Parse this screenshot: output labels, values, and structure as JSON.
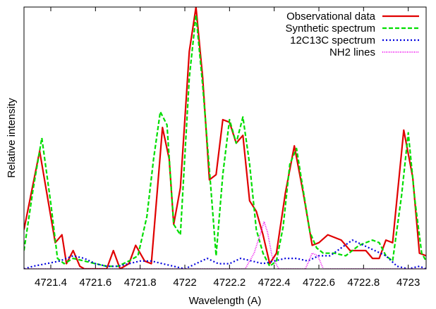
{
  "chart_data": {
    "type": "line",
    "title": "",
    "xlabel": "Wavelength (A)",
    "ylabel": "Relative intensity",
    "xlim": [
      4721.28,
      4723.08
    ],
    "ylim": [
      0,
      1
    ],
    "grid": false,
    "legend_position": "top-right",
    "x_ticks": [
      {
        "value": 4721.4,
        "label": "4721.4"
      },
      {
        "value": 4721.6,
        "label": "4721.6"
      },
      {
        "value": 4721.8,
        "label": "4721.8"
      },
      {
        "value": 4722.0,
        "label": "4722"
      },
      {
        "value": 4722.2,
        "label": "4722.2"
      },
      {
        "value": 4722.4,
        "label": "4722.4"
      },
      {
        "value": 4722.6,
        "label": "4722.6"
      },
      {
        "value": 4722.8,
        "label": "4722.8"
      },
      {
        "value": 4723.0,
        "label": "4723"
      }
    ],
    "series": [
      {
        "name": "Observational data",
        "color": "#e00000",
        "dash": "solid",
        "points": [
          [
            4721.28,
            0.15
          ],
          [
            4721.35,
            0.45
          ],
          [
            4721.42,
            0.1
          ],
          [
            4721.45,
            0.13
          ],
          [
            4721.47,
            0.02
          ],
          [
            4721.5,
            0.07
          ],
          [
            4721.53,
            0.01
          ],
          [
            4721.55,
            0.0
          ],
          [
            4721.6,
            0.0
          ],
          [
            4721.65,
            0.0
          ],
          [
            4721.68,
            0.07
          ],
          [
            4721.71,
            0.0
          ],
          [
            4721.75,
            0.02
          ],
          [
            4721.78,
            0.09
          ],
          [
            4721.82,
            0.03
          ],
          [
            4721.85,
            0.02
          ],
          [
            4721.9,
            0.54
          ],
          [
            4721.93,
            0.42
          ],
          [
            4721.95,
            0.17
          ],
          [
            4721.98,
            0.31
          ],
          [
            4722.02,
            0.83
          ],
          [
            4722.05,
            1.0
          ],
          [
            4722.08,
            0.73
          ],
          [
            4722.11,
            0.34
          ],
          [
            4722.14,
            0.36
          ],
          [
            4722.17,
            0.57
          ],
          [
            4722.2,
            0.56
          ],
          [
            4722.23,
            0.48
          ],
          [
            4722.26,
            0.51
          ],
          [
            4722.29,
            0.26
          ],
          [
            4722.32,
            0.22
          ],
          [
            4722.35,
            0.13
          ],
          [
            4722.38,
            0.02
          ],
          [
            4722.41,
            0.06
          ],
          [
            4722.45,
            0.29
          ],
          [
            4722.49,
            0.47
          ],
          [
            4722.53,
            0.29
          ],
          [
            4722.57,
            0.09
          ],
          [
            4722.6,
            0.1
          ],
          [
            4722.64,
            0.13
          ],
          [
            4722.67,
            0.12
          ],
          [
            4722.7,
            0.11
          ],
          [
            4722.74,
            0.07
          ],
          [
            4722.77,
            0.07
          ],
          [
            4722.81,
            0.07
          ],
          [
            4722.84,
            0.04
          ],
          [
            4722.87,
            0.04
          ],
          [
            4722.9,
            0.11
          ],
          [
            4722.93,
            0.1
          ],
          [
            4722.98,
            0.53
          ],
          [
            4723.02,
            0.35
          ],
          [
            4723.05,
            0.06
          ],
          [
            4723.08,
            0.05
          ]
        ]
      },
      {
        "name": "Synthetic spectrum",
        "color": "#00dd00",
        "dash": "dashed",
        "points": [
          [
            4721.28,
            0.07
          ],
          [
            4721.32,
            0.3
          ],
          [
            4721.36,
            0.5
          ],
          [
            4721.4,
            0.25
          ],
          [
            4721.43,
            0.04
          ],
          [
            4721.46,
            0.02
          ],
          [
            4721.5,
            0.04
          ],
          [
            4721.55,
            0.03
          ],
          [
            4721.6,
            0.02
          ],
          [
            4721.65,
            0.01
          ],
          [
            4721.7,
            0.01
          ],
          [
            4721.75,
            0.03
          ],
          [
            4721.79,
            0.05
          ],
          [
            4721.83,
            0.2
          ],
          [
            4721.86,
            0.42
          ],
          [
            4721.89,
            0.6
          ],
          [
            4721.92,
            0.55
          ],
          [
            4721.95,
            0.17
          ],
          [
            4721.98,
            0.13
          ],
          [
            4722.02,
            0.73
          ],
          [
            4722.05,
            0.97
          ],
          [
            4722.08,
            0.7
          ],
          [
            4722.11,
            0.38
          ],
          [
            4722.14,
            0.05
          ],
          [
            4722.17,
            0.36
          ],
          [
            4722.2,
            0.57
          ],
          [
            4722.23,
            0.48
          ],
          [
            4722.26,
            0.58
          ],
          [
            4722.29,
            0.4
          ],
          [
            4722.32,
            0.15
          ],
          [
            4722.35,
            0.06
          ],
          [
            4722.38,
            0.01
          ],
          [
            4722.41,
            0.03
          ],
          [
            4722.44,
            0.16
          ],
          [
            4722.47,
            0.4
          ],
          [
            4722.5,
            0.46
          ],
          [
            4722.53,
            0.3
          ],
          [
            4722.56,
            0.14
          ],
          [
            4722.59,
            0.08
          ],
          [
            4722.62,
            0.06
          ],
          [
            4722.67,
            0.06
          ],
          [
            4722.72,
            0.05
          ],
          [
            4722.78,
            0.09
          ],
          [
            4722.84,
            0.11
          ],
          [
            4722.87,
            0.1
          ],
          [
            4722.9,
            0.05
          ],
          [
            4722.93,
            0.03
          ],
          [
            4722.97,
            0.28
          ],
          [
            4723.0,
            0.52
          ],
          [
            4723.03,
            0.26
          ],
          [
            4723.06,
            0.06
          ],
          [
            4723.08,
            0.03
          ]
        ]
      },
      {
        "name": "12C13C spectrum",
        "color": "#0000dd",
        "dash": "dotted",
        "points": [
          [
            4721.28,
            0.0
          ],
          [
            4721.32,
            0.01
          ],
          [
            4721.38,
            0.02
          ],
          [
            4721.44,
            0.03
          ],
          [
            4721.5,
            0.05
          ],
          [
            4721.55,
            0.04
          ],
          [
            4721.6,
            0.02
          ],
          [
            4721.65,
            0.01
          ],
          [
            4721.7,
            0.01
          ],
          [
            4721.75,
            0.02
          ],
          [
            4721.8,
            0.03
          ],
          [
            4721.85,
            0.03
          ],
          [
            4721.9,
            0.02
          ],
          [
            4721.95,
            0.01
          ],
          [
            4722.0,
            0.0
          ],
          [
            4722.05,
            0.02
          ],
          [
            4722.1,
            0.04
          ],
          [
            4722.15,
            0.02
          ],
          [
            4722.2,
            0.02
          ],
          [
            4722.25,
            0.04
          ],
          [
            4722.3,
            0.03
          ],
          [
            4722.35,
            0.02
          ],
          [
            4722.4,
            0.03
          ],
          [
            4722.45,
            0.04
          ],
          [
            4722.5,
            0.04
          ],
          [
            4722.55,
            0.03
          ],
          [
            4722.6,
            0.05
          ],
          [
            4722.65,
            0.05
          ],
          [
            4722.7,
            0.08
          ],
          [
            4722.75,
            0.11
          ],
          [
            4722.8,
            0.09
          ],
          [
            4722.85,
            0.07
          ],
          [
            4722.9,
            0.05
          ],
          [
            4722.95,
            0.01
          ],
          [
            4723.0,
            0.0
          ],
          [
            4723.05,
            0.01
          ],
          [
            4723.08,
            0.0
          ]
        ]
      },
      {
        "name": "NH2 lines",
        "color": "#ee00ee",
        "dash": "fine-dotted",
        "points": [
          [
            4721.28,
            0.0
          ],
          [
            4722.2,
            0.0
          ],
          [
            4722.27,
            0.0
          ],
          [
            4722.31,
            0.06
          ],
          [
            4722.34,
            0.14
          ],
          [
            4722.355,
            0.18
          ],
          [
            4722.37,
            0.14
          ],
          [
            4722.39,
            0.05
          ],
          [
            4722.42,
            0.0
          ],
          [
            4722.54,
            0.0
          ],
          [
            4722.57,
            0.06
          ],
          [
            4722.595,
            0.05
          ],
          [
            4722.62,
            0.0
          ],
          [
            4723.08,
            0.0
          ]
        ]
      }
    ]
  }
}
